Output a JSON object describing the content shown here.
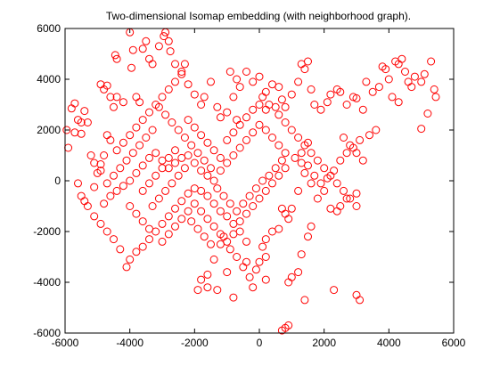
{
  "chart_data": {
    "type": "scatter",
    "title": "Two-dimensional Isomap embedding (with neighborhood graph).",
    "xlabel": "",
    "ylabel": "",
    "xlim": [
      -6000,
      6000
    ],
    "ylim": [
      -6000,
      6000
    ],
    "xticks": [
      -6000,
      -4000,
      -2000,
      0,
      2000,
      4000,
      6000
    ],
    "yticks": [
      -6000,
      -4000,
      -2000,
      0,
      2000,
      4000,
      6000
    ],
    "xtick_labels": [
      "-6000",
      "-4000",
      "-2000",
      "0",
      "2000",
      "4000",
      "6000"
    ],
    "ytick_labels": [
      "-6000",
      "-4000",
      "-2000",
      "0",
      "2000",
      "4000",
      "6000"
    ],
    "grid": false,
    "marker": "circle",
    "color": "#ff0000",
    "points": [
      [
        -5950,
        2000
      ],
      [
        -5900,
        1300
      ],
      [
        -5800,
        2850
      ],
      [
        -5700,
        3050
      ],
      [
        -5600,
        2400
      ],
      [
        -5500,
        2300
      ],
      [
        -5400,
        2750
      ],
      [
        -5300,
        2300
      ],
      [
        -5700,
        1900
      ],
      [
        -5500,
        1850
      ],
      [
        -5600,
        -100
      ],
      [
        -5500,
        -600
      ],
      [
        -5400,
        -800
      ],
      [
        -5300,
        -1000
      ],
      [
        -5100,
        -250
      ],
      [
        -5000,
        300
      ],
      [
        -4900,
        650
      ],
      [
        -4800,
        1000
      ],
      [
        -4700,
        1800
      ],
      [
        -4600,
        1600
      ],
      [
        -4900,
        3800
      ],
      [
        -4800,
        3600
      ],
      [
        -4700,
        3750
      ],
      [
        -4600,
        3300
      ],
      [
        -4500,
        2900
      ],
      [
        -4400,
        3300
      ],
      [
        -4200,
        3100
      ],
      [
        -4450,
        4950
      ],
      [
        -4400,
        4800
      ],
      [
        -4000,
        5850
      ],
      [
        -3900,
        5150
      ],
      [
        -3950,
        4450
      ],
      [
        -3800,
        3300
      ],
      [
        -3700,
        3100
      ],
      [
        -3600,
        5200
      ],
      [
        -3500,
        5500
      ],
      [
        -3400,
        4800
      ],
      [
        -3300,
        4600
      ],
      [
        -3100,
        5300
      ],
      [
        -2950,
        5700
      ],
      [
        -2900,
        5850
      ],
      [
        -2800,
        5500
      ],
      [
        -2750,
        5100
      ],
      [
        -2600,
        4600
      ],
      [
        -2400,
        4300
      ],
      [
        -2300,
        4600
      ],
      [
        -2200,
        3800
      ],
      [
        -2000,
        3400
      ],
      [
        -1800,
        3000
      ],
      [
        -1700,
        3300
      ],
      [
        -1500,
        3900
      ],
      [
        -1300,
        2900
      ],
      [
        -1200,
        2500
      ],
      [
        -1000,
        2700
      ],
      [
        -800,
        3300
      ],
      [
        -700,
        2400
      ],
      [
        -900,
        4300
      ],
      [
        -700,
        4000
      ],
      [
        -600,
        3700
      ],
      [
        -400,
        4300
      ],
      [
        -200,
        3900
      ],
      [
        0,
        4100
      ],
      [
        100,
        3300
      ],
      [
        200,
        2800
      ],
      [
        300,
        3000
      ],
      [
        500,
        2900
      ],
      [
        600,
        3700
      ],
      [
        700,
        3200
      ],
      [
        800,
        2900
      ],
      [
        1000,
        3400
      ],
      [
        1200,
        3900
      ],
      [
        1300,
        4600
      ],
      [
        1400,
        4400
      ],
      [
        1500,
        4700
      ],
      [
        1600,
        3600
      ],
      [
        1700,
        3000
      ],
      [
        1900,
        2800
      ],
      [
        2100,
        3100
      ],
      [
        2200,
        3400
      ],
      [
        2400,
        3600
      ],
      [
        2500,
        3500
      ],
      [
        2700,
        3000
      ],
      [
        2900,
        3300
      ],
      [
        3000,
        3250
      ],
      [
        3200,
        2800
      ],
      [
        3300,
        3900
      ],
      [
        3500,
        3500
      ],
      [
        3700,
        3700
      ],
      [
        3800,
        4500
      ],
      [
        3900,
        4400
      ],
      [
        4000,
        4000
      ],
      [
        4200,
        4700
      ],
      [
        4300,
        4600
      ],
      [
        4400,
        4800
      ],
      [
        4500,
        4300
      ],
      [
        4600,
        3900
      ],
      [
        4700,
        3700
      ],
      [
        4800,
        4100
      ],
      [
        5000,
        3900
      ],
      [
        5100,
        4200
      ],
      [
        5300,
        4700
      ],
      [
        5400,
        3600
      ],
      [
        5450,
        3300
      ],
      [
        5200,
        2650
      ],
      [
        5000,
        2050
      ],
      [
        4300,
        3100
      ],
      [
        4100,
        3300
      ],
      [
        3600,
        2000
      ],
      [
        3400,
        1800
      ],
      [
        3100,
        1600
      ],
      [
        2900,
        1300
      ],
      [
        2700,
        1100
      ],
      [
        2500,
        800
      ],
      [
        2300,
        400
      ],
      [
        2100,
        100
      ],
      [
        1900,
        -100
      ],
      [
        2000,
        -400
      ],
      [
        2200,
        -1100
      ],
      [
        2400,
        -1200
      ],
      [
        2500,
        -1000
      ],
      [
        2700,
        -700
      ],
      [
        3000,
        -500
      ],
      [
        1800,
        -700
      ],
      [
        1600,
        -1800
      ],
      [
        1500,
        -2200
      ],
      [
        1300,
        -2900
      ],
      [
        1200,
        -3600
      ],
      [
        1000,
        -3800
      ],
      [
        900,
        -4000
      ],
      [
        800,
        -5800
      ],
      [
        700,
        -5900
      ],
      [
        900,
        -5700
      ],
      [
        1400,
        -4700
      ],
      [
        2300,
        -4300
      ],
      [
        3000,
        -4500
      ],
      [
        3100,
        -4700
      ],
      [
        1500,
        1500
      ],
      [
        1300,
        1100
      ],
      [
        1100,
        900
      ],
      [
        1300,
        700
      ],
      [
        1500,
        600
      ],
      [
        1400,
        300
      ],
      [
        1700,
        200
      ],
      [
        1600,
        -100
      ],
      [
        1200,
        -400
      ],
      [
        1000,
        -1100
      ],
      [
        800,
        -1300
      ],
      [
        700,
        -1100
      ],
      [
        900,
        -1500
      ],
      [
        600,
        -1900
      ],
      [
        400,
        -2000
      ],
      [
        200,
        -2300
      ],
      [
        100,
        -2600
      ],
      [
        0,
        -3200
      ],
      [
        200,
        -3000
      ],
      [
        -100,
        -3500
      ],
      [
        -300,
        -3800
      ],
      [
        -500,
        -3400
      ],
      [
        -400,
        -3200
      ],
      [
        -700,
        -3000
      ],
      [
        -900,
        -2700
      ],
      [
        -1100,
        -2200
      ],
      [
        -1200,
        -2500
      ],
      [
        -1400,
        -3100
      ],
      [
        -1600,
        -3700
      ],
      [
        -1800,
        -3900
      ],
      [
        -1900,
        -4300
      ],
      [
        -1600,
        -4200
      ],
      [
        -1300,
        -4300
      ],
      [
        -1000,
        -3600
      ],
      [
        -800,
        -4600
      ],
      [
        -200,
        -4200
      ],
      [
        200,
        -3900
      ],
      [
        -400,
        -2400
      ],
      [
        -600,
        -2000
      ],
      [
        -800,
        -1700
      ],
      [
        -1000,
        -1400
      ],
      [
        -1200,
        -1200
      ],
      [
        -1400,
        -900
      ],
      [
        -1600,
        -600
      ],
      [
        -1800,
        -400
      ],
      [
        -2000,
        -300
      ],
      [
        -2200,
        -500
      ],
      [
        -2400,
        -800
      ],
      [
        -2600,
        -1100
      ],
      [
        -2800,
        -1400
      ],
      [
        -3000,
        -1700
      ],
      [
        -3200,
        -2000
      ],
      [
        -3400,
        -2300
      ],
      [
        -3600,
        -2600
      ],
      [
        -3800,
        -2800
      ],
      [
        -4000,
        -3100
      ],
      [
        -4100,
        -3400
      ],
      [
        -4300,
        -2700
      ],
      [
        -4500,
        -2300
      ],
      [
        -4700,
        -2000
      ],
      [
        -4900,
        -1700
      ],
      [
        -5100,
        -1400
      ],
      [
        -4800,
        -900
      ],
      [
        -4600,
        -600
      ],
      [
        -4400,
        -400
      ],
      [
        -4200,
        -200
      ],
      [
        -4000,
        0
      ],
      [
        -3800,
        300
      ],
      [
        -3600,
        600
      ],
      [
        -3400,
        900
      ],
      [
        -3200,
        1100
      ],
      [
        -3000,
        800
      ],
      [
        -2800,
        500
      ],
      [
        -2600,
        700
      ],
      [
        -2400,
        900
      ],
      [
        -2200,
        1000
      ],
      [
        -2000,
        700
      ],
      [
        -1800,
        400
      ],
      [
        -1600,
        200
      ],
      [
        -1400,
        0
      ],
      [
        -1200,
        400
      ],
      [
        -1000,
        700
      ],
      [
        -800,
        1000
      ],
      [
        -600,
        1300
      ],
      [
        -400,
        1600
      ],
      [
        -200,
        1900
      ],
      [
        0,
        2200
      ],
      [
        200,
        2000
      ],
      [
        400,
        1700
      ],
      [
        600,
        1400
      ],
      [
        800,
        1100
      ],
      [
        700,
        800
      ],
      [
        500,
        500
      ],
      [
        300,
        200
      ],
      [
        100,
        0
      ],
      [
        -100,
        -300
      ],
      [
        -300,
        -600
      ],
      [
        -500,
        -900
      ],
      [
        -700,
        -1200
      ],
      [
        -900,
        -900
      ],
      [
        -1100,
        -600
      ],
      [
        -1300,
        -300
      ],
      [
        -1500,
        500
      ],
      [
        -1700,
        800
      ],
      [
        -1900,
        1100
      ],
      [
        -2100,
        1400
      ],
      [
        -2300,
        1700
      ],
      [
        -2500,
        2000
      ],
      [
        -2700,
        2300
      ],
      [
        -2900,
        2600
      ],
      [
        -3100,
        2900
      ],
      [
        -3300,
        2000
      ],
      [
        -3500,
        1700
      ],
      [
        -3700,
        1400
      ],
      [
        -3900,
        1100
      ],
      [
        -4100,
        800
      ],
      [
        -4300,
        500
      ],
      [
        -4500,
        200
      ],
      [
        -4700,
        -100
      ],
      [
        -4900,
        400
      ],
      [
        -5100,
        700
      ],
      [
        -5200,
        1000
      ],
      [
        -4400,
        1200
      ],
      [
        -4200,
        1500
      ],
      [
        -4000,
        1800
      ],
      [
        -3800,
        2100
      ],
      [
        -3600,
        2400
      ],
      [
        -3400,
        2700
      ],
      [
        -3200,
        3000
      ],
      [
        -3000,
        3300
      ],
      [
        -2800,
        3600
      ],
      [
        -2600,
        3900
      ],
      [
        -2400,
        4200
      ],
      [
        -2200,
        2400
      ],
      [
        -2000,
        2100
      ],
      [
        -1800,
        1800
      ],
      [
        -1600,
        1500
      ],
      [
        -1400,
        1200
      ],
      [
        -1200,
        900
      ],
      [
        -1000,
        1600
      ],
      [
        -800,
        1900
      ],
      [
        -600,
        2200
      ],
      [
        -400,
        2500
      ],
      [
        -200,
        2800
      ],
      [
        0,
        3000
      ],
      [
        200,
        3500
      ],
      [
        400,
        3800
      ],
      [
        600,
        2600
      ],
      [
        800,
        2300
      ],
      [
        1000,
        2000
      ],
      [
        1200,
        1700
      ],
      [
        1400,
        1400
      ],
      [
        1600,
        1100
      ],
      [
        1800,
        800
      ],
      [
        2000,
        500
      ],
      [
        2200,
        200
      ],
      [
        2400,
        -100
      ],
      [
        2600,
        -400
      ],
      [
        2800,
        -700
      ],
      [
        3000,
        -1000
      ],
      [
        2600,
        1700
      ],
      [
        2800,
        1400
      ],
      [
        3000,
        1100
      ],
      [
        3200,
        800
      ],
      [
        -3000,
        -2400
      ],
      [
        -2800,
        -2100
      ],
      [
        -2600,
        -1800
      ],
      [
        -2400,
        -1500
      ],
      [
        -2200,
        -1200
      ],
      [
        -2000,
        -900
      ],
      [
        -1800,
        -1200
      ],
      [
        -1600,
        -1500
      ],
      [
        -1400,
        -1800
      ],
      [
        -1200,
        -2100
      ],
      [
        -1000,
        -2400
      ],
      [
        -800,
        -2100
      ],
      [
        -600,
        -1600
      ],
      [
        -400,
        -1300
      ],
      [
        -200,
        -1000
      ],
      [
        0,
        -700
      ],
      [
        200,
        -400
      ],
      [
        400,
        -100
      ],
      [
        600,
        200
      ],
      [
        800,
        500
      ],
      [
        -3300,
        -1000
      ],
      [
        -3100,
        -700
      ],
      [
        -2900,
        -400
      ],
      [
        -2700,
        -100
      ],
      [
        -2500,
        200
      ],
      [
        -2300,
        500
      ],
      [
        -2100,
        -1600
      ],
      [
        -1900,
        -1900
      ],
      [
        -1700,
        -2200
      ],
      [
        -1500,
        -2500
      ],
      [
        -3600,
        -400
      ],
      [
        -3400,
        -100
      ],
      [
        -3200,
        200
      ],
      [
        -3000,
        500
      ],
      [
        -2800,
        900
      ],
      [
        -2600,
        1200
      ],
      [
        -4000,
        -1000
      ],
      [
        -3800,
        -1300
      ],
      [
        -3600,
        -1600
      ],
      [
        -3400,
        -1900
      ]
    ]
  }
}
